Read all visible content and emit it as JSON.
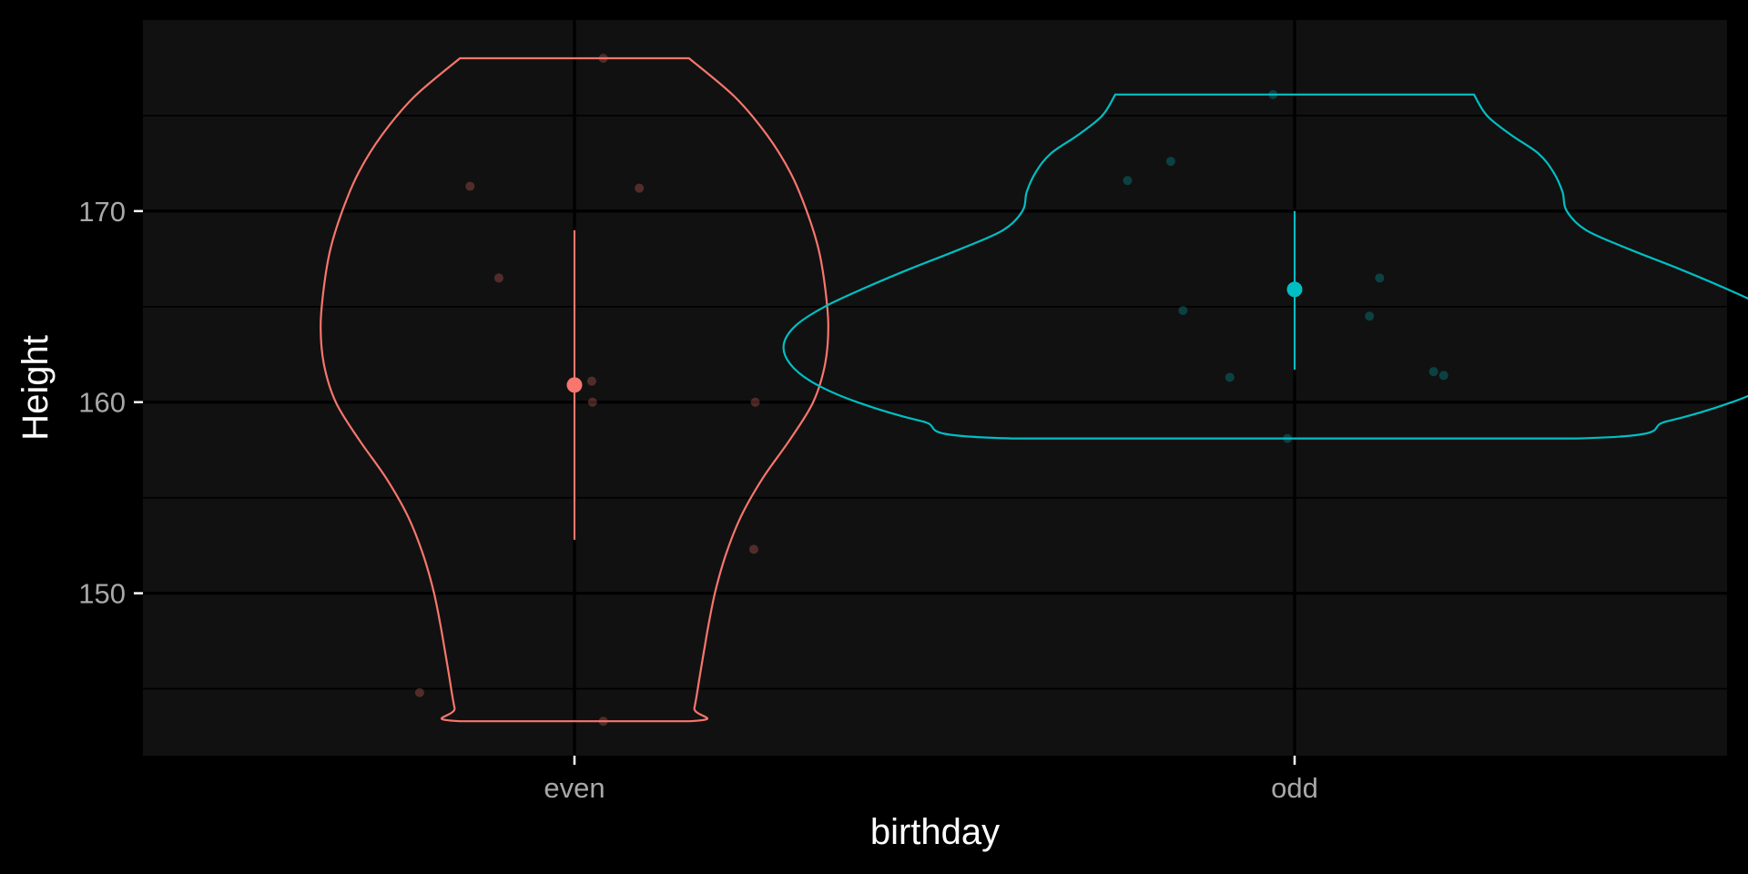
{
  "chart_data": {
    "type": "violin",
    "xlabel": "birthday",
    "ylabel": "Height",
    "categories": [
      "even",
      "odd"
    ],
    "ylim": [
      141.5,
      180
    ],
    "yticks": [
      150,
      160,
      170
    ],
    "grid": true,
    "legend": "none",
    "colors": {
      "background": "#000000",
      "panel": "#111111",
      "grid": "#000000",
      "even": "#F8766D",
      "odd": "#00BFC4"
    },
    "series": [
      {
        "category": "even",
        "summary": {
          "mean": 160.9,
          "lower": 152.8,
          "upper": 169.0
        },
        "points": [
          {
            "x_jitter": 0.04,
            "y": 178.0
          },
          {
            "x_jitter": -0.145,
            "y": 171.3
          },
          {
            "x_jitter": 0.09,
            "y": 171.2
          },
          {
            "x_jitter": -0.105,
            "y": 166.5
          },
          {
            "x_jitter": 0.024,
            "y": 161.1
          },
          {
            "x_jitter": 0.025,
            "y": 160.0
          },
          {
            "x_jitter": 0.251,
            "y": 160.0
          },
          {
            "x_jitter": 0.249,
            "y": 152.3
          },
          {
            "x_jitter": -0.215,
            "y": 144.8
          },
          {
            "x_jitter": 0.04,
            "y": 143.3
          }
        ],
        "density": [
          [
            178.0,
            0.106
          ],
          [
            176.0,
            0.148
          ],
          [
            174.0,
            0.178
          ],
          [
            172.0,
            0.2
          ],
          [
            170.0,
            0.215
          ],
          [
            168.0,
            0.226
          ],
          [
            166.0,
            0.232
          ],
          [
            164.0,
            0.235
          ],
          [
            162.0,
            0.232
          ],
          [
            160.0,
            0.221
          ],
          [
            158.0,
            0.199
          ],
          [
            156.0,
            0.174
          ],
          [
            154.0,
            0.154
          ],
          [
            152.0,
            0.14
          ],
          [
            150.0,
            0.13
          ],
          [
            148.0,
            0.123
          ],
          [
            146.0,
            0.117
          ],
          [
            144.0,
            0.111
          ],
          [
            143.3,
            0.106
          ]
        ]
      },
      {
        "category": "odd",
        "summary": {
          "mean": 165.9,
          "lower": 161.7,
          "upper": 170.0
        },
        "points": [
          {
            "x_jitter": -0.03,
            "y": 176.1
          },
          {
            "x_jitter": -0.172,
            "y": 172.6
          },
          {
            "x_jitter": -0.232,
            "y": 171.6
          },
          {
            "x_jitter": 0.118,
            "y": 166.5
          },
          {
            "x_jitter": -0.155,
            "y": 164.8
          },
          {
            "x_jitter": 0.104,
            "y": 164.5
          },
          {
            "x_jitter": 0.193,
            "y": 161.6
          },
          {
            "x_jitter": 0.207,
            "y": 161.4
          },
          {
            "x_jitter": -0.09,
            "y": 161.3
          },
          {
            "x_jitter": -0.01,
            "y": 158.1
          }
        ],
        "density": [
          [
            176.1,
            0.166
          ],
          [
            175.0,
            0.178
          ],
          [
            174.0,
            0.2
          ],
          [
            173.0,
            0.226
          ],
          [
            172.0,
            0.24
          ],
          [
            171.0,
            0.248
          ],
          [
            170.0,
            0.252
          ],
          [
            169.0,
            0.27
          ],
          [
            168.0,
            0.31
          ],
          [
            167.0,
            0.355
          ],
          [
            166.0,
            0.397
          ],
          [
            165.0,
            0.435
          ],
          [
            164.0,
            0.462
          ],
          [
            163.0,
            0.473
          ],
          [
            162.0,
            0.467
          ],
          [
            161.0,
            0.445
          ],
          [
            160.0,
            0.405
          ],
          [
            159.0,
            0.345
          ],
          [
            158.1,
            0.261
          ]
        ]
      }
    ]
  }
}
